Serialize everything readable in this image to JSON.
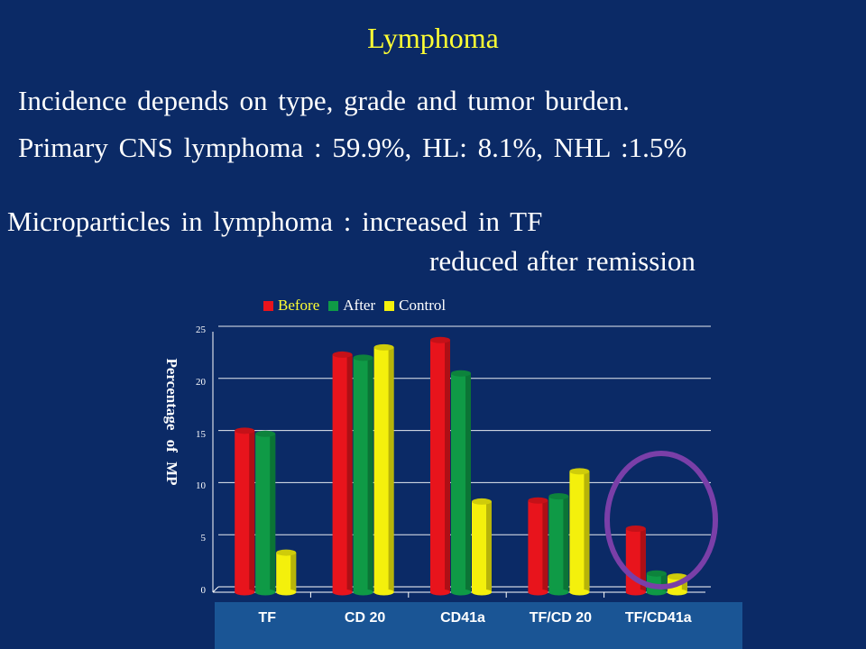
{
  "slide": {
    "title": "Lymphoma",
    "line1": "Incidence depends on type, grade and tumor burden.",
    "line2": "Primary CNS lymphoma : 59.9%, HL: 8.1%, NHL :1.5%",
    "line3": "Microparticles in lymphoma : increased in TF",
    "line4": "reduced after remission"
  },
  "colors": {
    "background": "#0b2a66",
    "title": "#ffff33",
    "before": "#e8141c",
    "after": "#0f9a46",
    "control": "#f4f00c",
    "highlight_circle": "#7a3fa8"
  },
  "chart_data": {
    "type": "bar",
    "categories": [
      "TF",
      "CD 20",
      "CD41a",
      "TF/CD 20",
      "TF/CD41a"
    ],
    "series": [
      {
        "name": "Before",
        "values": [
          15.5,
          22.8,
          24.2,
          8.8,
          6.1
        ]
      },
      {
        "name": "After",
        "values": [
          15.2,
          22.5,
          21.0,
          9.2,
          1.8
        ]
      },
      {
        "name": "Control",
        "values": [
          3.8,
          23.5,
          8.7,
          11.6,
          1.5
        ]
      }
    ],
    "ylabel": "Percentage of MP",
    "xlabel": "",
    "ylim": [
      0,
      25
    ],
    "yticks": [
      "0",
      "5",
      "10",
      "15",
      "20",
      "25"
    ],
    "legend_position": "top",
    "grid": true,
    "highlighted_category": "TF/CD41a"
  }
}
